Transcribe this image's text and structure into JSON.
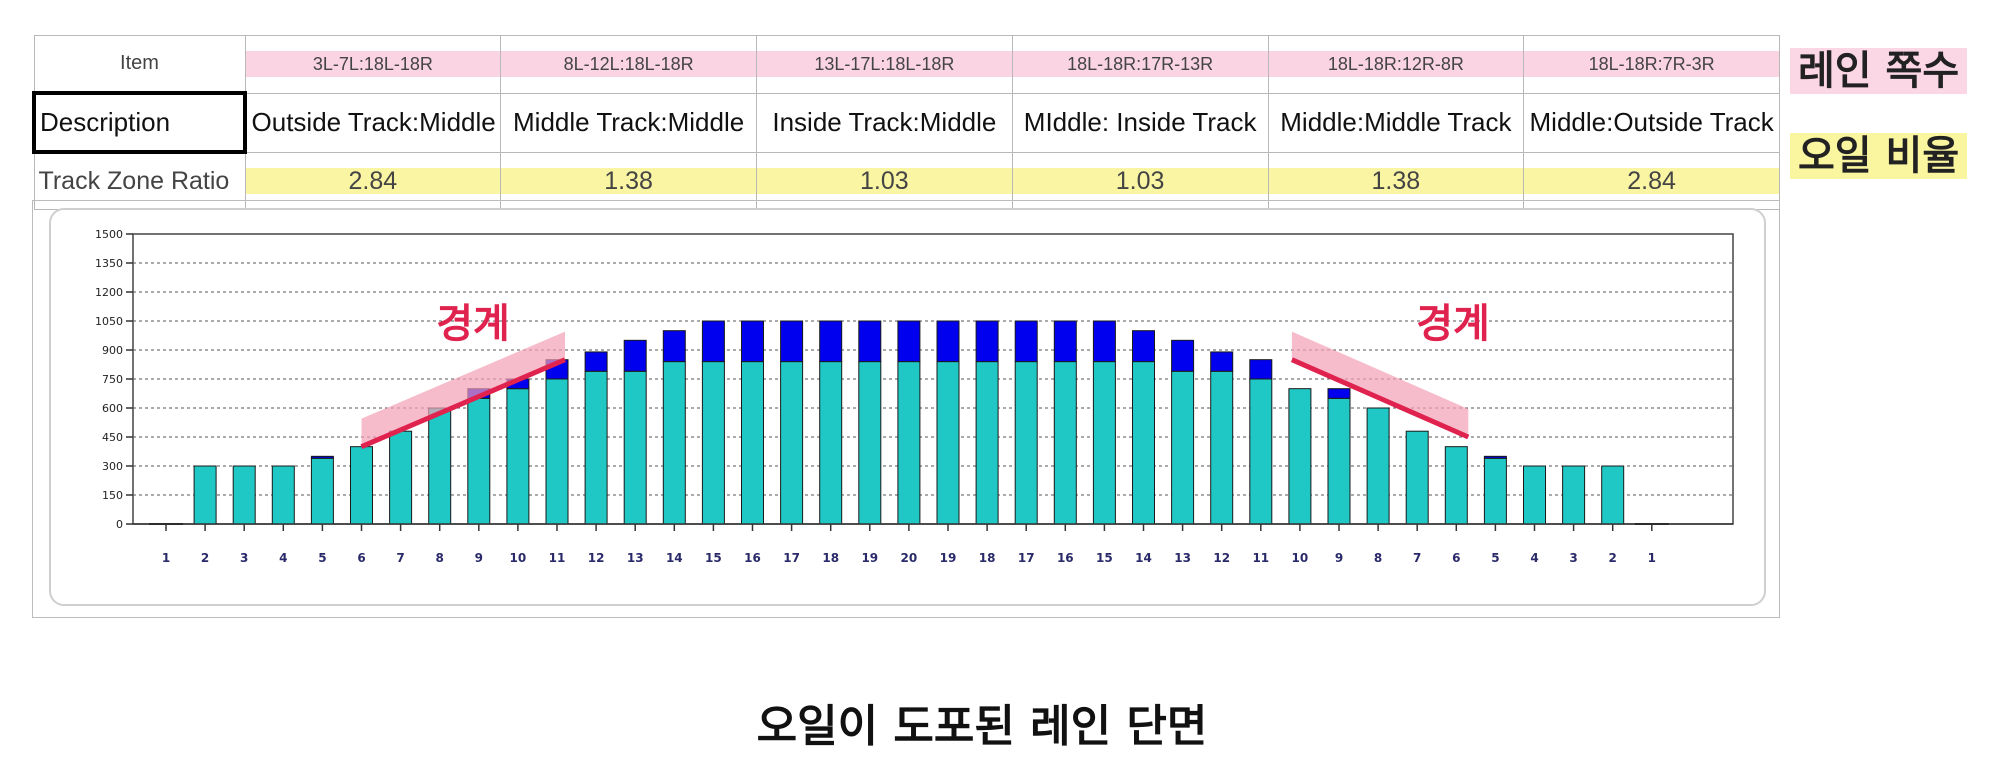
{
  "table": {
    "row_labels": {
      "item": "Item",
      "description": "Description",
      "ratio": "Track Zone Ratio"
    },
    "columns": [
      {
        "item": "3L-7L:18L-18R",
        "description": "Outside Track:Middle",
        "ratio": "2.84"
      },
      {
        "item": "8L-12L:18L-18R",
        "description": "Middle Track:Middle",
        "ratio": "1.38"
      },
      {
        "item": "13L-17L:18L-18R",
        "description": "Inside Track:Middle",
        "ratio": "1.03"
      },
      {
        "item": "18L-18R:17R-13R",
        "description": "MIddle: Inside Track",
        "ratio": "1.03"
      },
      {
        "item": "18L-18R:12R-8R",
        "description": "Middle:Middle Track",
        "ratio": "1.38"
      },
      {
        "item": "18L-18R:7R-3R",
        "description": "Middle:Outside Track",
        "ratio": "2.84"
      }
    ]
  },
  "side_labels": {
    "lane_count": "레인 쪽수",
    "oil_ratio": "오일 비율"
  },
  "caption": "오일이 도포된 레인 단면",
  "colors": {
    "base_bar": "#1fc8c4",
    "top_bar": "#0000ee",
    "boundary_line": "#e0234e",
    "boundary_band": "#f4a0b5",
    "annotation": "#e0234e",
    "pink_highlight": "#fad4e3",
    "yellow_highlight": "#faf5a3"
  },
  "chart_data": {
    "type": "bar",
    "stacked": true,
    "categories": [
      "1",
      "2",
      "3",
      "4",
      "5",
      "6",
      "7",
      "8",
      "9",
      "10",
      "11",
      "12",
      "13",
      "14",
      "15",
      "16",
      "17",
      "18",
      "19",
      "20",
      "19",
      "18",
      "17",
      "16",
      "15",
      "14",
      "13",
      "12",
      "11",
      "10",
      "9",
      "8",
      "7",
      "6",
      "5",
      "4",
      "3",
      "2",
      "1"
    ],
    "series": [
      {
        "color": "#1fc8c4",
        "values": [
          0,
          300,
          300,
          300,
          340,
          400,
          480,
          600,
          650,
          700,
          750,
          790,
          790,
          840,
          840,
          840,
          840,
          840,
          840,
          840,
          840,
          840,
          840,
          840,
          840,
          840,
          790,
          790,
          750,
          700,
          650,
          600,
          480,
          400,
          340,
          300,
          300,
          300,
          0
        ]
      },
      {
        "color": "#0000ee",
        "values": [
          0,
          0,
          0,
          0,
          10,
          0,
          0,
          0,
          50,
          50,
          100,
          100,
          160,
          160,
          210,
          210,
          210,
          210,
          210,
          210,
          210,
          210,
          210,
          210,
          210,
          160,
          160,
          100,
          100,
          0,
          50,
          0,
          0,
          0,
          10,
          0,
          0,
          0,
          0
        ]
      }
    ],
    "y_ticks": [
      0,
      150,
      300,
      450,
      600,
      750,
      900,
      1050,
      1200,
      1350,
      1500
    ],
    "ylim": [
      0,
      1500
    ],
    "grid": true,
    "annotations": [
      {
        "text": "경계",
        "side": "left"
      },
      {
        "text": "경계",
        "side": "right"
      }
    ]
  }
}
